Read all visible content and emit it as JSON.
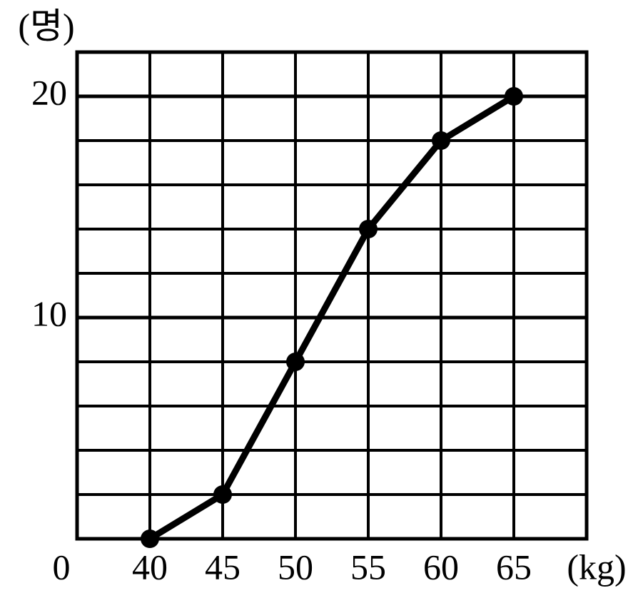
{
  "chart_data": {
    "type": "line",
    "x_label": "(kg)",
    "y_label": "(명)",
    "origin_label": "0",
    "x": [
      40,
      45,
      50,
      55,
      60,
      65
    ],
    "y": [
      0,
      2,
      8,
      14,
      18,
      20
    ],
    "color": "#000000",
    "xlim": [
      35,
      70
    ],
    "ylim": [
      0,
      22
    ],
    "xticks": [
      40,
      45,
      50,
      55,
      60,
      65
    ],
    "yticks": [
      10,
      20
    ],
    "grid": true,
    "grid_step": {
      "x": 5,
      "y": 2
    }
  }
}
